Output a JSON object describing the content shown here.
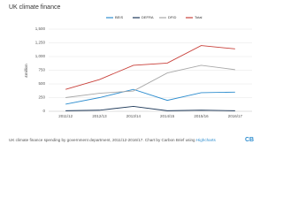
{
  "chart_data": {
    "type": "line",
    "title": "UK climate finance",
    "y_label": "£million",
    "categories": [
      "2011/12",
      "2012/13",
      "2013/14",
      "2014/15",
      "2015/16",
      "2016/17"
    ],
    "series": [
      {
        "name": "BEIS",
        "color": "#2f8ecf",
        "values": [
          130,
          250,
          400,
          200,
          340,
          350
        ]
      },
      {
        "name": "DEFRA",
        "color": "#1f3a5a",
        "values": [
          10,
          20,
          90,
          10,
          20,
          10
        ]
      },
      {
        "name": "DFID",
        "color": "#a8a8a8",
        "values": [
          250,
          330,
          370,
          700,
          840,
          760
        ]
      },
      {
        "name": "Total",
        "color": "#c9413b",
        "values": [
          400,
          580,
          840,
          880,
          1200,
          1140
        ]
      }
    ],
    "ylim": [
      0,
      1500
    ],
    "yticks": [
      0,
      250,
      500,
      750,
      {
        "value": 1000,
        "label": "1,000"
      },
      {
        "value": 1250,
        "label": "1,250"
      },
      {
        "value": 1500,
        "label": "1,500"
      }
    ],
    "grid": true,
    "caption": "UK climate finance spending by government department, 2011/12-2016/17. Chart by Carbon Brief using ",
    "caption_link": "Highcharts",
    "logo": "CB"
  }
}
